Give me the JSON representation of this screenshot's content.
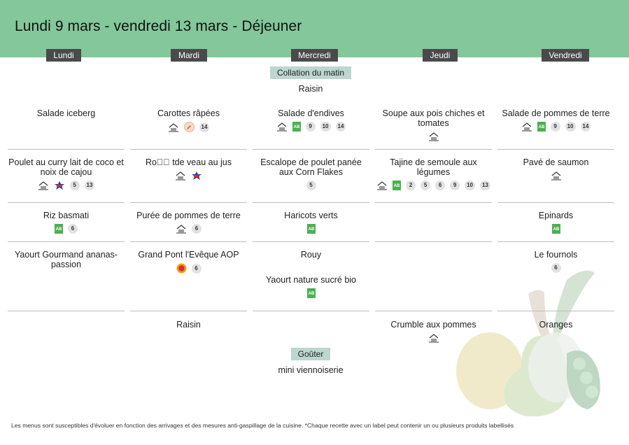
{
  "title": "Lundi 9 mars - vendredi 13 mars  - Déjeuner",
  "days": [
    "Lundi",
    "Mardi",
    "Mercredi",
    "Jeudi",
    "Vendredi"
  ],
  "morning_snack": {
    "label": "Collation du matin",
    "item": "Raisin"
  },
  "afternoon_snack": {
    "label": "Goûter",
    "item": "mini viennoiserie"
  },
  "columns": [
    {
      "day": "Lundi",
      "cells": [
        {
          "dishes": [
            {
              "name": "Salade iceberg",
              "icons": [],
              "badges": []
            }
          ]
        },
        {
          "dishes": [
            {
              "name": "Poulet au curry lait de coco et noix de cajou",
              "icons": [
                "house-made-icon",
                "label-rouge-icon"
              ],
              "badges": [
                "5",
                "13"
              ]
            }
          ]
        },
        {
          "dishes": [
            {
              "name": "Riz basmati",
              "icons": [
                "organic-ab-icon"
              ],
              "badges": [
                "6"
              ]
            }
          ]
        },
        {
          "dishes": [
            {
              "name": "Yaourt Gourmand ananas-passion",
              "icons": [],
              "badges": []
            }
          ]
        },
        {
          "dishes": []
        }
      ]
    },
    {
      "day": "Mardi",
      "cells": [
        {
          "dishes": [
            {
              "name": "Carottes râpées",
              "icons": [
                "house-made-icon",
                "carrot-origin-icon"
              ],
              "badges": [
                "14"
              ]
            }
          ]
        },
        {
          "dishes": [
            {
              "name": "Ro\u0000\u0000 tde veau au jus",
              "icons": [
                "house-made-icon",
                "label-rouge-icon"
              ],
              "badges": []
            }
          ]
        },
        {
          "dishes": [
            {
              "name": "Purée de pommes de terre",
              "icons": [
                "house-made-icon"
              ],
              "badges": [
                "6"
              ]
            }
          ]
        },
        {
          "dishes": [
            {
              "name": "Grand Pont l'Evêque AOP",
              "icons": [
                "aop-icon"
              ],
              "badges": [
                "6"
              ]
            }
          ]
        },
        {
          "dishes": [
            {
              "name": "Raisin",
              "icons": [],
              "badges": []
            }
          ]
        }
      ]
    },
    {
      "day": "Mercredi",
      "cells": [
        {
          "dishes": [
            {
              "name": "Salade d'endives",
              "icons": [
                "house-made-icon",
                "organic-ab-icon"
              ],
              "badges": [
                "9",
                "10",
                "14"
              ]
            }
          ]
        },
        {
          "dishes": [
            {
              "name": "Escalope de poulet panée aux Corn Flakes",
              "icons": [],
              "badges": [
                "5"
              ]
            }
          ]
        },
        {
          "dishes": [
            {
              "name": "Haricots verts",
              "icons": [
                "organic-ab-icon"
              ],
              "badges": []
            }
          ]
        },
        {
          "dishes": [
            {
              "name": "Rouy",
              "icons": [],
              "badges": []
            },
            {
              "name": "Yaourt nature sucré bio",
              "icons": [
                "organic-ab-icon"
              ],
              "badges": []
            }
          ]
        },
        {
          "dishes": []
        }
      ]
    },
    {
      "day": "Jeudi",
      "cells": [
        {
          "dishes": [
            {
              "name": "Soupe aux pois chiches et tomates",
              "icons": [
                "house-made-icon"
              ],
              "badges": []
            }
          ]
        },
        {
          "dishes": [
            {
              "name": "Tajine de semoule aux légumes",
              "icons": [
                "house-made-icon",
                "organic-ab-icon"
              ],
              "badges": [
                "2",
                "5",
                "6",
                "9",
                "10",
                "13"
              ]
            }
          ]
        },
        {
          "dishes": []
        },
        {
          "dishes": []
        },
        {
          "dishes": [
            {
              "name": "Crumble aux pommes",
              "icons": [
                "house-made-icon"
              ],
              "badges": []
            }
          ]
        }
      ]
    },
    {
      "day": "Vendredi",
      "cells": [
        {
          "dishes": [
            {
              "name": "Salade de pommes de terre",
              "icons": [
                "house-made-icon",
                "organic-ab-icon"
              ],
              "badges": [
                "9",
                "10",
                "14"
              ]
            }
          ]
        },
        {
          "dishes": [
            {
              "name": "Pavé de saumon",
              "icons": [
                "house-made-icon"
              ],
              "badges": []
            }
          ]
        },
        {
          "dishes": [
            {
              "name": "Epinards",
              "icons": [
                "organic-ab-icon"
              ],
              "badges": []
            }
          ]
        },
        {
          "dishes": [
            {
              "name": "Le fournols",
              "icons": [],
              "badges": [
                "6"
              ]
            }
          ]
        },
        {
          "dishes": [
            {
              "name": "Oranges",
              "icons": [],
              "badges": []
            }
          ]
        }
      ]
    }
  ],
  "footer": "Les menus sont susceptibles d'évoluer en fonction des arrivages et des mesures anti-gaspillage de la cuisine. *Chaque recette avec un label peut contenir un ou plusieurs produits labellisés",
  "colors": {
    "header": "#83c79a",
    "day_tab": "#4a4a4a",
    "pill": "#bcd6d0",
    "organic": "#4caf50",
    "badge": "#e2e2e2"
  }
}
